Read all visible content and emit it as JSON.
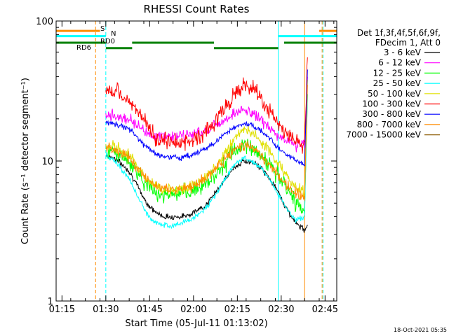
{
  "chart_data": {
    "type": "line",
    "title": "RHESSI Count Rates",
    "xlabel": "Start Time (05-Jul-11 01:13:02)",
    "ylabel": "Count Rate (s⁻¹ detector segment⁻¹)",
    "x_unit": "minutes after 05-Jul-11 01:13:02",
    "xlim": [
      0,
      96
    ],
    "ylim": [
      1,
      100
    ],
    "y_scale": "log",
    "x_ticks": [
      {
        "label": "01:15",
        "x": 2
      },
      {
        "label": "01:30",
        "x": 17
      },
      {
        "label": "01:45",
        "x": 32
      },
      {
        "label": "02:00",
        "x": 47
      },
      {
        "label": "02:15",
        "x": 62
      },
      {
        "label": "02:30",
        "x": 77
      },
      {
        "label": "02:45",
        "x": 92
      }
    ],
    "y_ticks": [
      {
        "label": "1",
        "y": 1
      },
      {
        "label": "10",
        "y": 10
      },
      {
        "label": "100",
        "y": 100
      }
    ],
    "grid": false,
    "legend_position": "right",
    "legend_header": [
      "Det 1f,3f,4f,5f,6f,9f,",
      "FDecim 1, Att 0"
    ],
    "series": [
      {
        "name": "3 - 6 keV",
        "color": "#000000",
        "x": [
          15,
          17,
          20,
          25,
          28,
          31,
          34,
          37,
          40,
          43,
          46,
          49,
          52,
          55,
          58,
          61,
          64,
          67,
          70,
          73,
          76,
          79,
          82,
          85,
          86
        ],
        "values": [
          null,
          11,
          10.5,
          8.5,
          6.5,
          5,
          4.3,
          4,
          4,
          4,
          4.2,
          4.5,
          5,
          6.2,
          7.5,
          9,
          10,
          9.8,
          9,
          7.5,
          6,
          4.5,
          3.6,
          3.2,
          3.5
        ]
      },
      {
        "name": "6 - 12 keV",
        "color": "#ff00ff",
        "x": [
          15,
          17,
          20,
          25,
          28,
          31,
          34,
          37,
          40,
          43,
          46,
          49,
          52,
          55,
          58,
          61,
          64,
          67,
          70,
          73,
          76,
          79,
          82,
          85,
          86
        ],
        "values": [
          null,
          22,
          21,
          20,
          18,
          16,
          15,
          15,
          15,
          15,
          15.5,
          16,
          17,
          18.5,
          20,
          22,
          23,
          22,
          20,
          17,
          15,
          14,
          13,
          13.5,
          40
        ]
      },
      {
        "name": "12 - 25 keV",
        "color": "#00ff00",
        "x": [
          15,
          17,
          20,
          25,
          28,
          31,
          34,
          37,
          40,
          43,
          46,
          49,
          52,
          55,
          58,
          61,
          64,
          67,
          70,
          73,
          76,
          79,
          82,
          85,
          86
        ],
        "values": [
          null,
          12,
          11.5,
          10,
          8.2,
          6.8,
          6,
          5.8,
          5.7,
          5.8,
          6,
          6.5,
          7.2,
          8.2,
          9.8,
          11.8,
          13,
          12.5,
          11.2,
          9.5,
          7.8,
          6.3,
          5,
          4.5,
          30
        ]
      },
      {
        "name": "25 - 50 keV",
        "color": "#00ffff",
        "x": [
          15,
          17,
          20,
          25,
          28,
          31,
          34,
          37,
          40,
          43,
          46,
          49,
          52,
          55,
          58,
          61,
          64,
          67,
          70,
          73,
          76,
          79,
          82,
          85,
          86
        ],
        "values": [
          null,
          11,
          10,
          7.5,
          5.5,
          4.2,
          3.6,
          3.5,
          3.5,
          3.6,
          3.8,
          4.2,
          4.8,
          6,
          7.5,
          9.5,
          10.5,
          10,
          9,
          7.5,
          5.8,
          4.5,
          3.8,
          4,
          30
        ]
      },
      {
        "name": "50 - 100 keV",
        "color": "#e0e000",
        "x": [
          15,
          17,
          20,
          25,
          28,
          31,
          34,
          37,
          40,
          43,
          46,
          49,
          52,
          55,
          58,
          61,
          64,
          67,
          70,
          73,
          76,
          79,
          82,
          85,
          86
        ],
        "values": [
          null,
          13,
          12.5,
          11,
          9,
          7.5,
          6.6,
          6.3,
          6.2,
          6.3,
          6.6,
          7,
          8,
          9.5,
          11.5,
          14.5,
          17,
          16,
          14,
          11.5,
          9.5,
          7.8,
          6.5,
          6,
          38
        ]
      },
      {
        "name": "100 - 300 keV",
        "color": "#ff0000",
        "x": [
          15,
          17,
          20,
          25,
          28,
          31,
          34,
          37,
          40,
          43,
          46,
          49,
          52,
          55,
          58,
          61,
          64,
          67,
          70,
          73,
          76,
          79,
          82,
          85,
          86
        ],
        "values": [
          null,
          32,
          31,
          28,
          22,
          18,
          15,
          14,
          13.5,
          13.5,
          14,
          15,
          17,
          20,
          24,
          30,
          35,
          33,
          28,
          22,
          18,
          15.5,
          13.5,
          13,
          55
        ]
      },
      {
        "name": "300 - 800 keV",
        "color": "#0000ff",
        "x": [
          15,
          17,
          20,
          25,
          28,
          31,
          34,
          37,
          40,
          43,
          46,
          49,
          52,
          55,
          58,
          61,
          64,
          67,
          70,
          73,
          76,
          79,
          82,
          85,
          86
        ],
        "values": [
          null,
          19,
          18.5,
          17,
          14.5,
          12.5,
          11.2,
          10.8,
          10.6,
          10.6,
          11,
          11.6,
          12.5,
          14,
          15.8,
          17.5,
          18.5,
          18,
          16.5,
          14.5,
          12.5,
          11,
          10,
          9.5,
          45
        ]
      },
      {
        "name": "800 - 7000 keV",
        "color": "#ff8c00",
        "x": [
          15,
          17,
          20,
          25,
          28,
          31,
          34,
          37,
          40,
          43,
          46,
          49,
          52,
          55,
          58,
          61,
          64,
          67,
          70,
          73,
          76,
          79,
          82,
          85,
          86
        ],
        "values": [
          null,
          12.5,
          12,
          10.5,
          8.8,
          7.4,
          6.6,
          6.3,
          6.2,
          6.3,
          6.5,
          7,
          7.8,
          9,
          10.5,
          12,
          13,
          12.5,
          11.2,
          9.5,
          8,
          6.8,
          5.8,
          5.5,
          35
        ]
      },
      {
        "name": "7000 - 15000 keV",
        "color": "#8b5a00",
        "x": [],
        "values": []
      }
    ],
    "annotations": [
      {
        "text": "S",
        "color": "#ff8c00"
      },
      {
        "text": "N",
        "color": "#00ffff"
      },
      {
        "text": "RD0",
        "color": "#008000"
      },
      {
        "text": "RD6",
        "color": "#008000"
      }
    ],
    "status_bars": [
      {
        "color": "#ff8c00",
        "level": 85,
        "x": [
          0,
          15
        ]
      },
      {
        "color": "#ff8c00",
        "level": 85,
        "x": [
          90,
          96
        ]
      },
      {
        "color": "#00ffff",
        "level": 78,
        "x": [
          0,
          17
        ]
      },
      {
        "color": "#00ffff",
        "level": 78,
        "x": [
          76,
          96
        ]
      },
      {
        "color": "#008000",
        "level": 70,
        "x": [
          0,
          17
        ]
      },
      {
        "color": "#008000",
        "level": 70,
        "x": [
          26,
          54
        ]
      },
      {
        "color": "#008000",
        "level": 70,
        "x": [
          78,
          96
        ]
      },
      {
        "color": "#008000",
        "level": 64,
        "x": [
          17,
          26
        ]
      },
      {
        "color": "#008000",
        "level": 64,
        "x": [
          54,
          76
        ]
      }
    ],
    "vertical_markers": [
      {
        "x": 0,
        "color": "#00ffff",
        "style": "solid"
      },
      {
        "x": 13.5,
        "color": "#ff8c00",
        "style": "dashed"
      },
      {
        "x": 17,
        "color": "#00ffff",
        "style": "dashed"
      },
      {
        "x": 76,
        "color": "#00ffff",
        "style": "solid"
      },
      {
        "x": 85,
        "color": "#ff8c00",
        "style": "solid"
      },
      {
        "x": 91,
        "color": "#ff8c00",
        "style": "dashed"
      },
      {
        "x": 91.3,
        "color": "#00ffff",
        "style": "dashed"
      }
    ]
  },
  "timestamp": "18-Oct-2021 05:35"
}
